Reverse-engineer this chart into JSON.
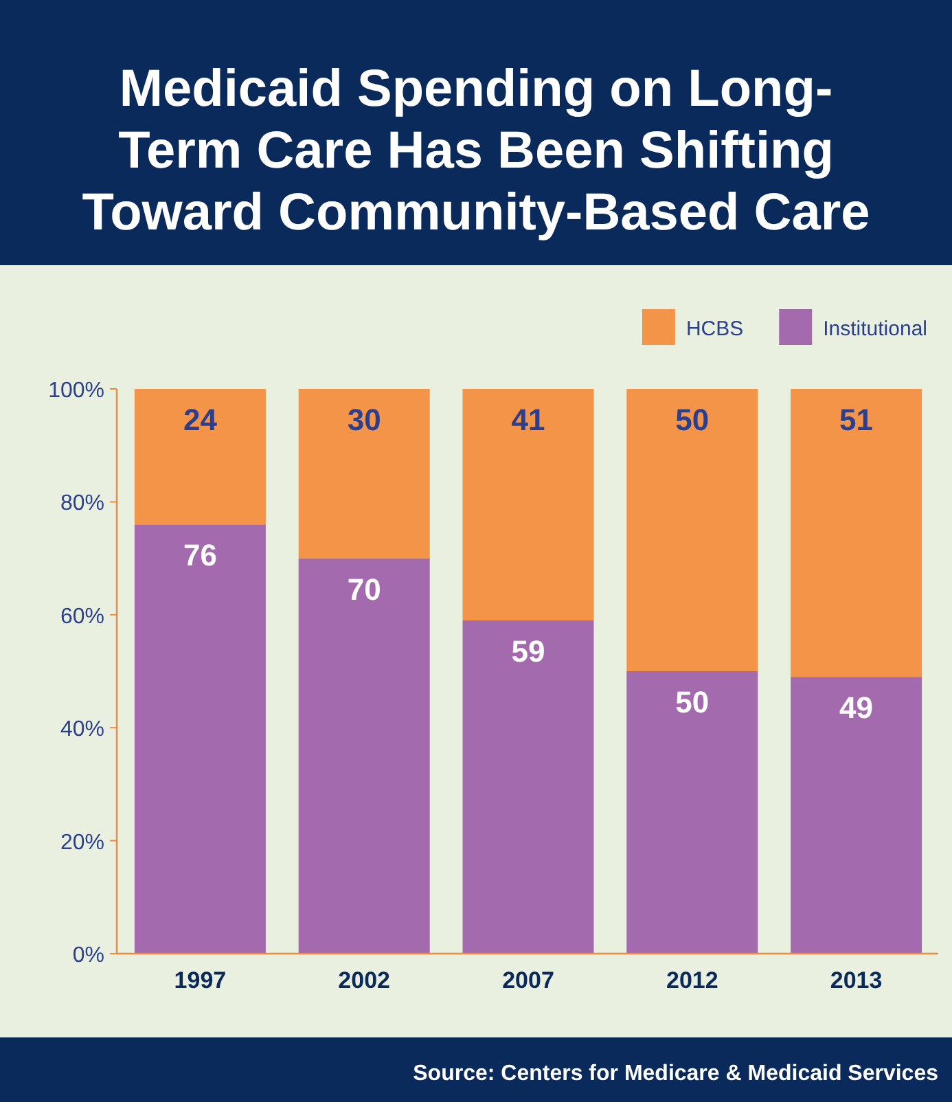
{
  "chart_data": {
    "type": "bar",
    "title": "Medicaid Spending on Long-Term Care Has Been Shifting Toward Community-Based Care",
    "categories": [
      "1997",
      "2002",
      "2007",
      "2012",
      "2013"
    ],
    "stacked": true,
    "series": [
      {
        "name": "Institutional",
        "color": "#a36bae",
        "values": [
          76,
          70,
          59,
          50,
          49
        ]
      },
      {
        "name": "HCBS",
        "color": "#f39449",
        "values": [
          24,
          30,
          41,
          50,
          51
        ]
      }
    ],
    "ylim": [
      0,
      100
    ],
    "yticks": [
      {
        "value": 0,
        "label": "0%"
      },
      {
        "value": 20,
        "label": "20%"
      },
      {
        "value": 40,
        "label": "40%"
      },
      {
        "value": 60,
        "label": "60%"
      },
      {
        "value": 80,
        "label": "80%"
      },
      {
        "value": 100,
        "label": "100%"
      }
    ],
    "data_labels": true,
    "legend": "top right",
    "grid": false,
    "annotations": [
      "Source: Centers for Medicare & Medicaid Services"
    ]
  }
}
